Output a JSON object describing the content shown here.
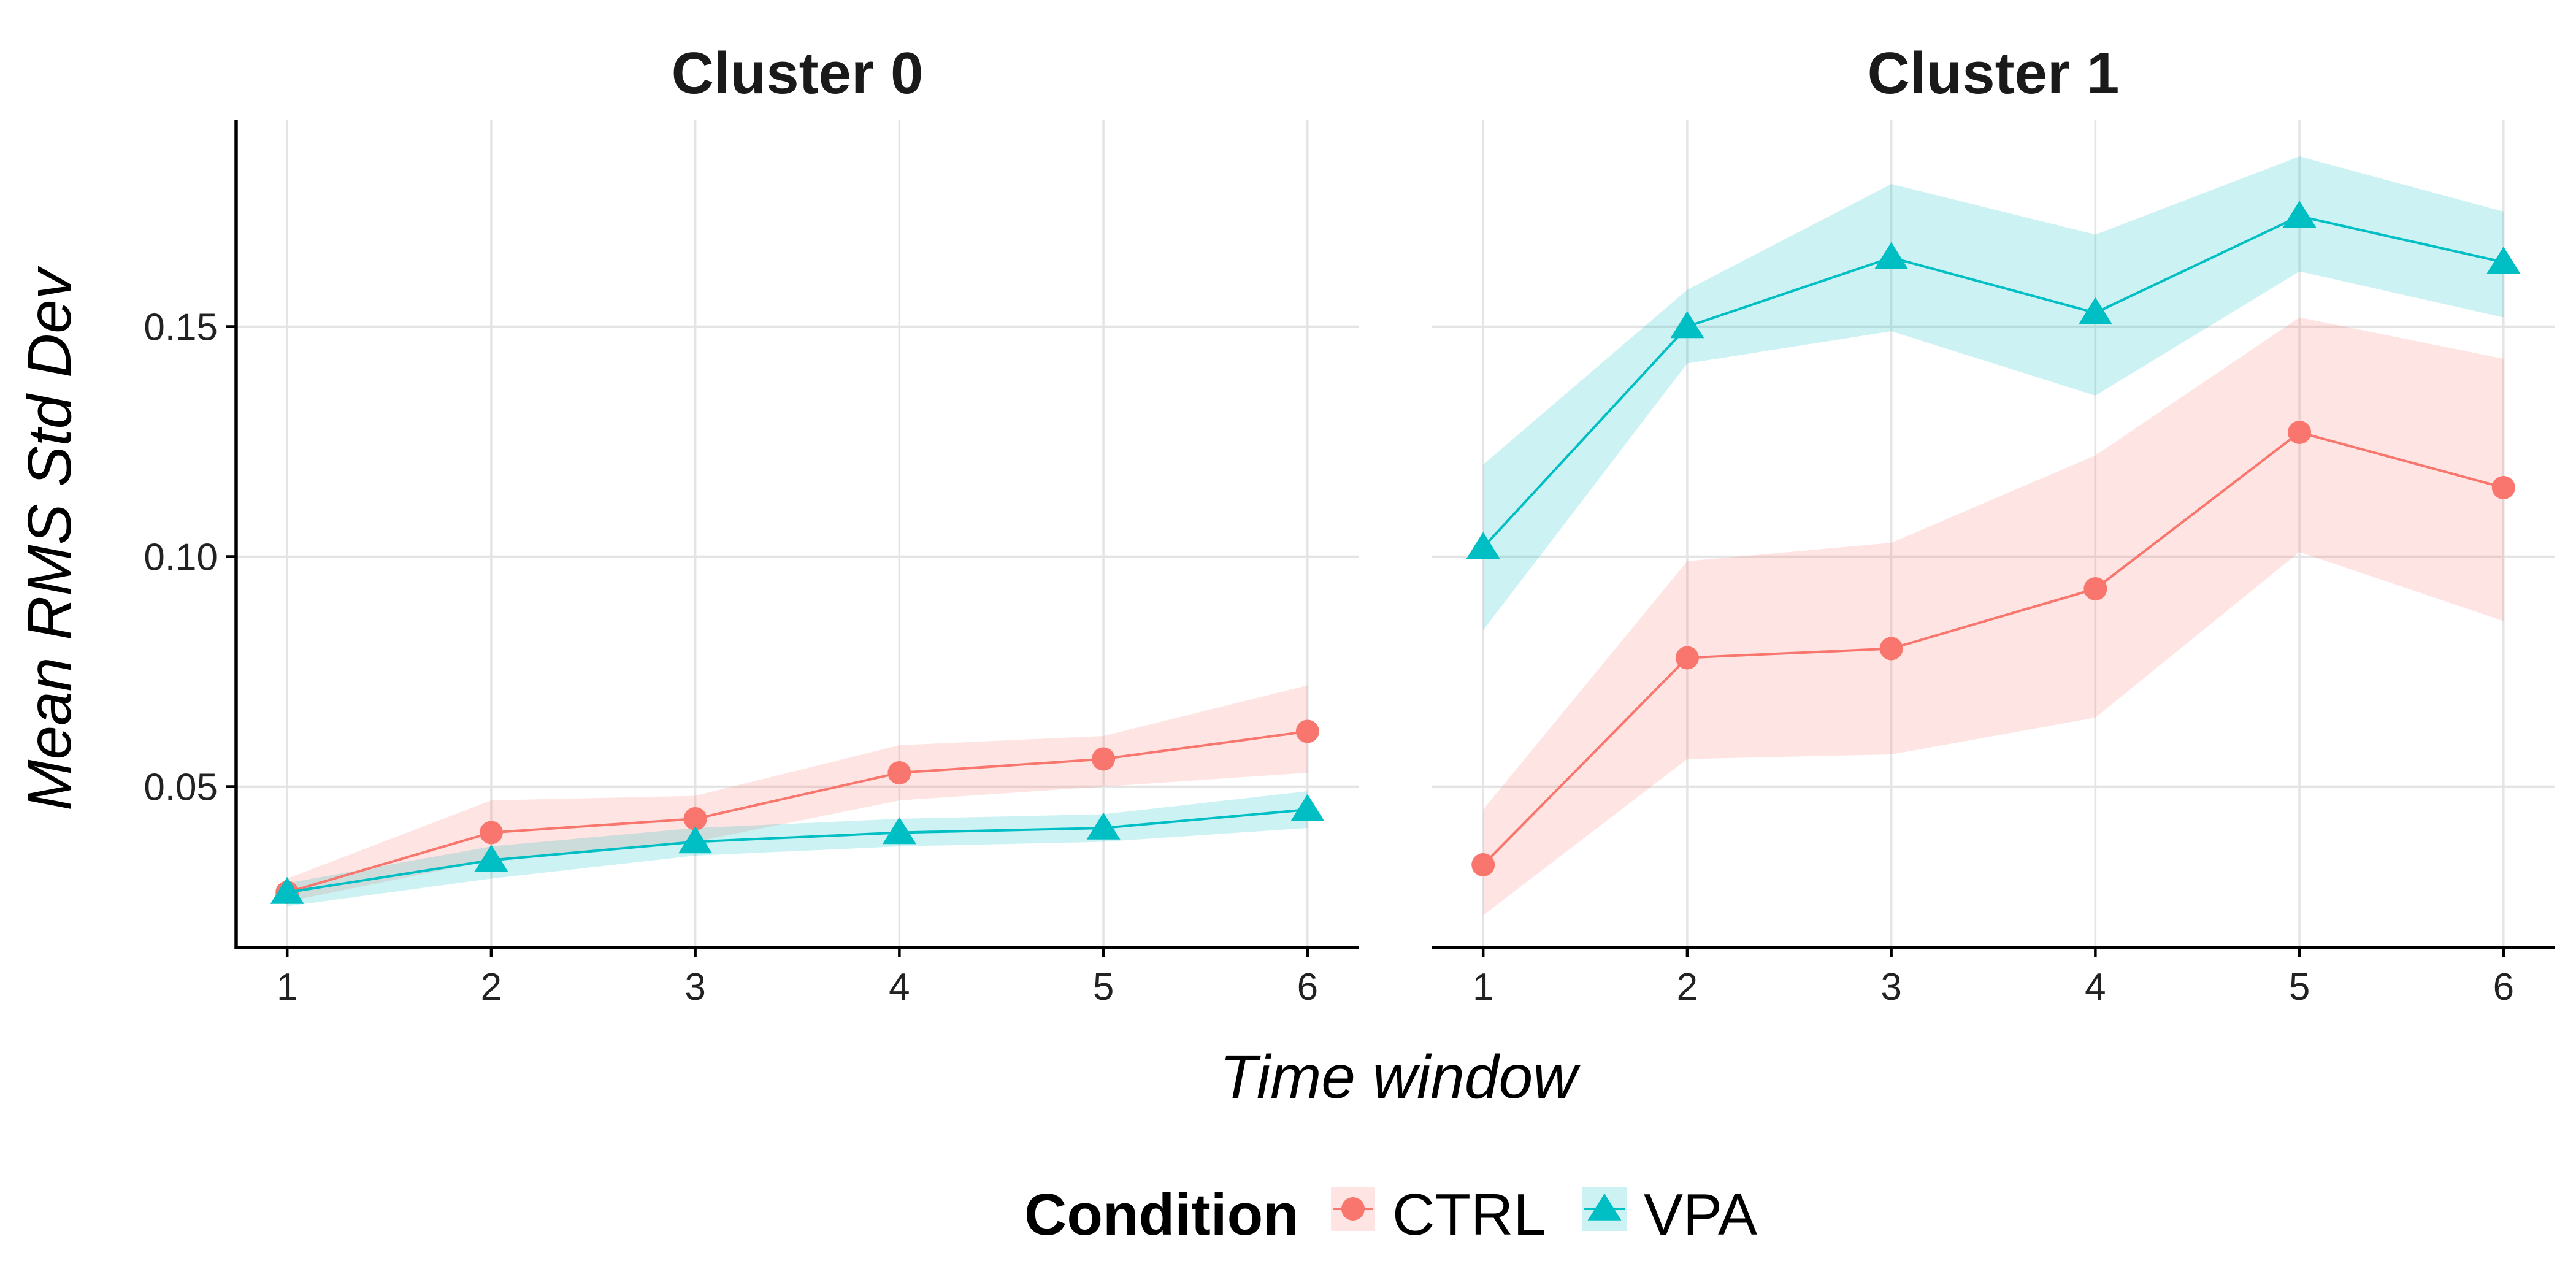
{
  "chart_data": {
    "type": "line",
    "x": [
      1,
      2,
      3,
      4,
      5,
      6
    ],
    "xlabel": "Time window",
    "ylabel": "Mean RMS Std Dev",
    "xlim": [
      0.75,
      6.25
    ],
    "ylim": [
      0.015,
      0.195
    ],
    "yticks": [
      0.05,
      0.1,
      0.15
    ],
    "ytick_labels": [
      "0.05",
      "0.10",
      "0.15"
    ],
    "xtick_labels": [
      "1",
      "2",
      "3",
      "4",
      "5",
      "6"
    ],
    "grid": true,
    "legend": {
      "position": "bottom",
      "title": "Condition",
      "entries": [
        {
          "name": "CTRL",
          "color": "#F8766D",
          "marker": "circle"
        },
        {
          "name": "VPA",
          "color": "#00BFC4",
          "marker": "triangle"
        }
      ]
    },
    "panels": [
      {
        "title": "Cluster 0",
        "series": [
          {
            "name": "CTRL",
            "color": "#F8766D",
            "fill": "#FDDEDD",
            "values": [
              0.027,
              0.04,
              0.043,
              0.053,
              0.056,
              0.062
            ],
            "lower": [
              0.025,
              0.034,
              0.038,
              0.047,
              0.05,
              0.053
            ],
            "upper": [
              0.03,
              0.047,
              0.048,
              0.059,
              0.061,
              0.072
            ]
          },
          {
            "name": "VPA",
            "color": "#00BFC4",
            "fill": "#CCF0F1",
            "values": [
              0.027,
              0.034,
              0.038,
              0.04,
              0.041,
              0.045
            ],
            "lower": [
              0.024,
              0.03,
              0.035,
              0.037,
              0.038,
              0.041
            ],
            "upper": [
              0.029,
              0.037,
              0.041,
              0.043,
              0.044,
              0.049
            ]
          }
        ]
      },
      {
        "title": "Cluster 1",
        "series": [
          {
            "name": "CTRL",
            "color": "#F8766D",
            "fill": "#FDDEDD",
            "values": [
              0.033,
              0.078,
              0.08,
              0.093,
              0.127,
              0.115
            ],
            "lower": [
              0.022,
              0.056,
              0.057,
              0.065,
              0.101,
              0.086
            ],
            "upper": [
              0.045,
              0.099,
              0.103,
              0.122,
              0.152,
              0.143
            ]
          },
          {
            "name": "VPA",
            "color": "#00BFC4",
            "fill": "#CCF0F1",
            "values": [
              0.102,
              0.15,
              0.165,
              0.153,
              0.174,
              0.164
            ],
            "lower": [
              0.084,
              0.142,
              0.149,
              0.135,
              0.162,
              0.152
            ],
            "upper": [
              0.12,
              0.158,
              0.181,
              0.17,
              0.187,
              0.175
            ]
          }
        ]
      }
    ]
  }
}
